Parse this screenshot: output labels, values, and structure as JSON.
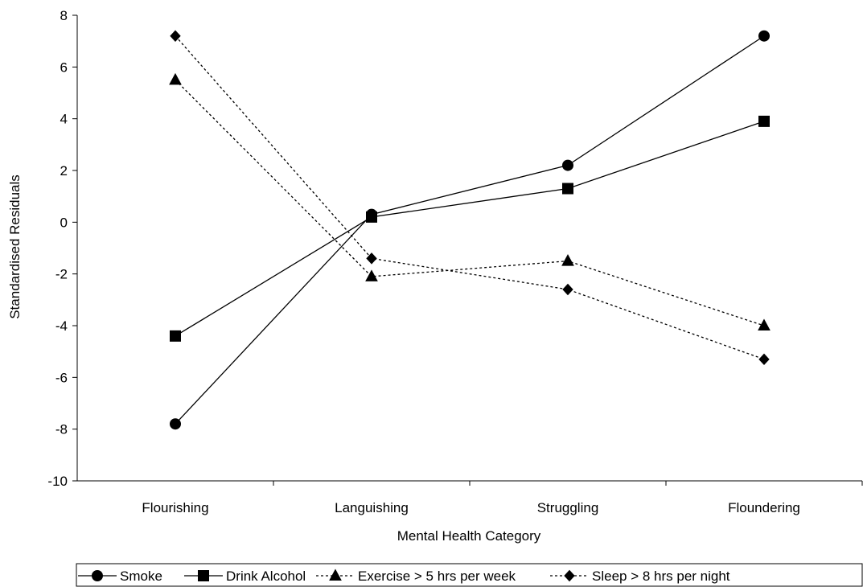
{
  "chart_data": {
    "type": "line",
    "title": "",
    "xlabel": "Mental Health Category",
    "ylabel": "Standardised Residuals",
    "categories": [
      "Flourishing",
      "Languishing",
      "Struggling",
      "Floundering"
    ],
    "ylim": [
      -10,
      8
    ],
    "yticks": [
      -10,
      -8,
      -6,
      -4,
      -2,
      0,
      2,
      4,
      6,
      8
    ],
    "grid": false,
    "legend_position": "bottom",
    "series": [
      {
        "name": "Smoke",
        "marker": "circle",
        "dash": "solid",
        "color": "#000000",
        "values": [
          -7.8,
          0.3,
          2.2,
          7.2
        ]
      },
      {
        "name": "Drink Alcohol",
        "marker": "square",
        "dash": "solid",
        "color": "#000000",
        "values": [
          -4.4,
          0.2,
          1.3,
          3.9
        ]
      },
      {
        "name": "Exercise > 5 hrs per week",
        "marker": "triangle",
        "dash": "dotted",
        "color": "#000000",
        "values": [
          5.5,
          -2.1,
          -1.5,
          -4.0
        ]
      },
      {
        "name": "Sleep > 8 hrs per night",
        "marker": "diamond",
        "dash": "dotted",
        "color": "#000000",
        "values": [
          7.2,
          -1.4,
          -2.6,
          -5.3
        ]
      }
    ]
  }
}
